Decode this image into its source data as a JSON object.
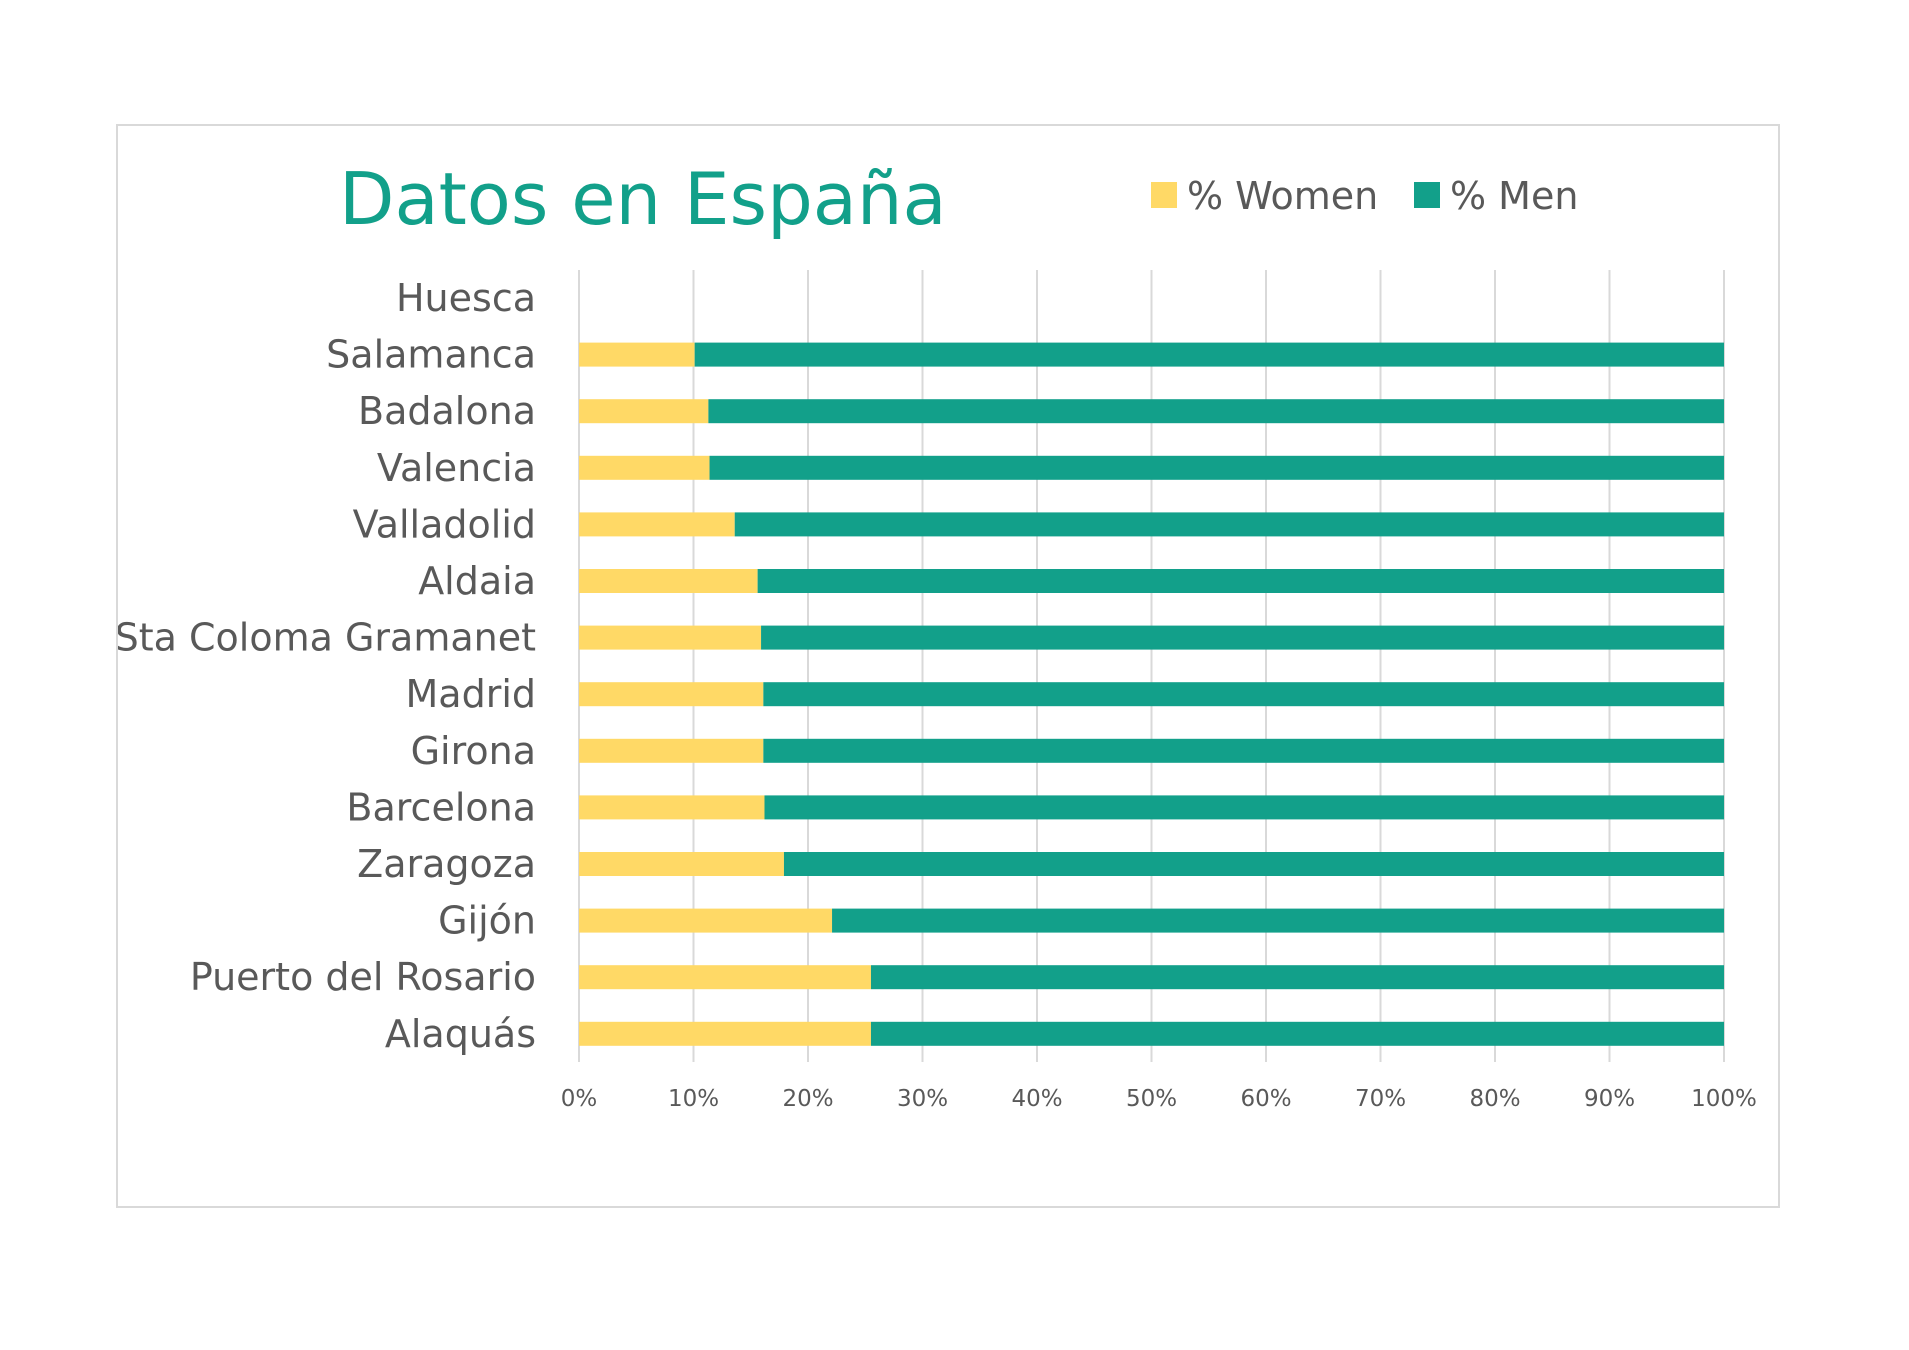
{
  "chart_data": {
    "type": "bar",
    "orientation": "horizontal",
    "stacked": "percent",
    "title": "Datos en España",
    "categories": [
      "Huesca",
      "Salamanca",
      "Badalona",
      "Valencia",
      "Valladolid",
      "Aldaia",
      "Sta Coloma Gramanet",
      "Madrid",
      "Girona",
      "Barcelona",
      "Zaragoza",
      "Gijón",
      "Puerto del Rosario",
      "Alaquás"
    ],
    "series": [
      {
        "name": "% Women",
        "color": "#ffd966",
        "values": [
          null,
          10.1,
          11.3,
          11.4,
          13.6,
          15.6,
          15.9,
          16.1,
          16.1,
          16.2,
          17.9,
          22.1,
          25.5,
          25.5
        ]
      },
      {
        "name": "% Men",
        "color": "#12a08a",
        "values": [
          null,
          89.9,
          88.7,
          88.6,
          86.4,
          84.4,
          84.1,
          83.9,
          83.9,
          83.8,
          82.1,
          77.9,
          74.5,
          74.5
        ]
      }
    ],
    "xlim": [
      0,
      100
    ],
    "xticks": [
      "0%",
      "10%",
      "20%",
      "30%",
      "40%",
      "50%",
      "60%",
      "70%",
      "80%",
      "90%",
      "100%"
    ],
    "grid": true,
    "legend": "top-right"
  }
}
